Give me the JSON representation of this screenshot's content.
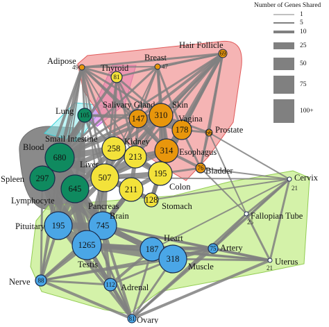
{
  "legend": {
    "title": "Number of Genes Shared",
    "entries": [
      {
        "label": "1",
        "weight": 1
      },
      {
        "label": "5",
        "weight": 5
      },
      {
        "label": "10",
        "weight": 10
      },
      {
        "label": "25",
        "weight": 25
      },
      {
        "label": "50",
        "weight": 50
      },
      {
        "label": "75",
        "weight": 75
      },
      {
        "label": "100+",
        "weight": 100
      }
    ]
  },
  "colors": {
    "green": "#0f8a5f",
    "yellow": "#f3e23a",
    "orange": "#e8960c",
    "blue": "#4aa6e6",
    "white": "#ffffff",
    "edge": "#808080",
    "hull_red": "#f08c8c",
    "hull_green": "#c6ee8c",
    "hull_cyan": "#8ceef0",
    "hull_magenta": "#d873f0",
    "hull_gray": "#8a8a8a"
  },
  "nodes": [
    {
      "id": "adipose",
      "label": "Adipose",
      "value": "49",
      "color": "orange"
    },
    {
      "id": "thyroid",
      "label": "Thyroid",
      "value": "81",
      "color": "yellow"
    },
    {
      "id": "breast",
      "label": "Breast",
      "value": "47",
      "color": "orange"
    },
    {
      "id": "hair_follicle",
      "label": "Hair Follicle",
      "value": "69",
      "color": "orange"
    },
    {
      "id": "lung",
      "label": "Lung",
      "value": "105",
      "color": "green"
    },
    {
      "id": "salivary_gland",
      "label": "Salivary Gland",
      "value": "147",
      "color": "orange"
    },
    {
      "id": "skin",
      "label": "Skin",
      "value": "310",
      "color": "orange"
    },
    {
      "id": "vagina",
      "label": "Vagina",
      "value": "178",
      "color": "orange"
    },
    {
      "id": "prostate",
      "label": "Prostate",
      "value": "66",
      "color": "orange"
    },
    {
      "id": "small_intestine",
      "label": "Small Intestine",
      "value": "258",
      "color": "yellow"
    },
    {
      "id": "kidney",
      "label": "Kidney",
      "value": "213",
      "color": "yellow"
    },
    {
      "id": "esophagus",
      "label": "Esophagus",
      "value": "314",
      "color": "orange"
    },
    {
      "id": "blood",
      "label": "Blood",
      "value": "680",
      "color": "green"
    },
    {
      "id": "bladder",
      "label": "Bladder",
      "value": "76",
      "color": "orange"
    },
    {
      "id": "cervix",
      "label": "Cervix",
      "value": "21",
      "color": "white"
    },
    {
      "id": "spleen",
      "label": "Spleen",
      "value": "297",
      "color": "green"
    },
    {
      "id": "liver",
      "label": "Liver",
      "value": "507",
      "color": "yellow"
    },
    {
      "id": "colon",
      "label": "Colon",
      "value": "195",
      "color": "yellow"
    },
    {
      "id": "lymphocyte",
      "label": "Lymphocyte",
      "value": "645",
      "color": "green"
    },
    {
      "id": "pancreas",
      "label": "Pancreas",
      "value": "211",
      "color": "yellow"
    },
    {
      "id": "stomach",
      "label": "Stomach",
      "value": "128",
      "color": "yellow"
    },
    {
      "id": "fallopian_tube",
      "label": "Fallopian Tube",
      "value": "25",
      "color": "white"
    },
    {
      "id": "pituitary",
      "label": "Pituitary",
      "value": "195",
      "color": "blue"
    },
    {
      "id": "brain",
      "label": "Brain",
      "value": "745",
      "color": "blue"
    },
    {
      "id": "heart",
      "label": "Heart",
      "value": "187",
      "color": "blue"
    },
    {
      "id": "artery",
      "label": "Artery",
      "value": "75",
      "color": "blue"
    },
    {
      "id": "testis",
      "label": "Testis",
      "value": "1265",
      "color": "blue"
    },
    {
      "id": "muscle",
      "label": "Muscle",
      "value": "318",
      "color": "blue"
    },
    {
      "id": "uterus",
      "label": "Uterus",
      "value": "21",
      "color": "white"
    },
    {
      "id": "nerve",
      "label": "Nerve",
      "value": "88",
      "color": "blue"
    },
    {
      "id": "adrenal",
      "label": "Adrenal",
      "value": "112",
      "color": "blue"
    },
    {
      "id": "ovary",
      "label": "Ovary",
      "value": "81",
      "color": "blue"
    }
  ]
}
